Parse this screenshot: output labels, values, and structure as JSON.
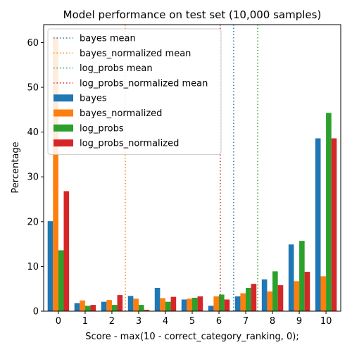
{
  "chart_data": {
    "type": "bar",
    "title": "Model performance on test set (10,000 samples)",
    "xlabel": "Score - max(10 - correct_category_ranking, 0);",
    "ylabel": "Percentage",
    "categories": [
      "0",
      "1",
      "2",
      "3",
      "4",
      "5",
      "6",
      "7",
      "8",
      "9",
      "10"
    ],
    "ylim": [
      0,
      64
    ],
    "yticks": [
      0,
      10,
      20,
      30,
      40,
      50,
      60
    ],
    "legend_position": "upper-left",
    "grid": false,
    "series": [
      {
        "name": "bayes",
        "color": "#1f77b4",
        "values": [
          20.1,
          1.8,
          2.1,
          3.4,
          5.2,
          2.6,
          1.2,
          3.3,
          7.1,
          14.9,
          38.6
        ]
      },
      {
        "name": "bayes_normalized",
        "color": "#ff7f0e",
        "values": [
          61.3,
          2.4,
          2.5,
          2.8,
          2.9,
          2.8,
          3.3,
          4.0,
          4.4,
          6.7,
          7.8
        ]
      },
      {
        "name": "log_probs",
        "color": "#2ca02c",
        "values": [
          13.6,
          1.2,
          1.4,
          1.4,
          2.1,
          3.0,
          3.7,
          5.2,
          8.9,
          15.7,
          44.3
        ]
      },
      {
        "name": "log_probs_normalized",
        "color": "#d62728",
        "values": [
          26.8,
          1.4,
          3.6,
          0.3,
          3.2,
          3.3,
          2.6,
          6.1,
          5.8,
          8.8,
          38.6
        ]
      }
    ],
    "mean_lines": [
      {
        "name": "bayes mean",
        "color": "#1f77b4",
        "x": 6.55
      },
      {
        "name": "bayes_normalized mean",
        "color": "#ff7f0e",
        "x": 2.5
      },
      {
        "name": "log_probs mean",
        "color": "#2ca02c",
        "x": 7.45
      },
      {
        "name": "log_probs_normalized mean",
        "color": "#d62728",
        "x": 6.05
      }
    ]
  }
}
